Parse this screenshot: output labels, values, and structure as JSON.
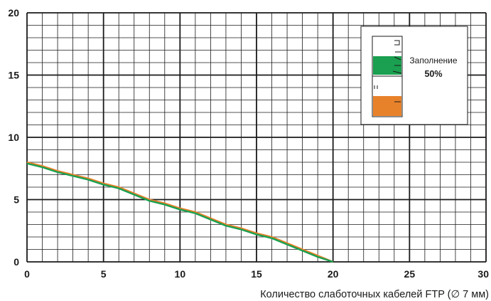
{
  "chart_data": {
    "type": "line",
    "xlabel": "Количество слаботочных кабелей FTP  (∅ 7 мм)",
    "ylabel": "",
    "xlim": [
      0,
      30
    ],
    "ylim": [
      0,
      20
    ],
    "x_ticks": [
      0,
      5,
      10,
      15,
      20,
      25,
      30
    ],
    "y_ticks": [
      0,
      5,
      10,
      15,
      20
    ],
    "grid": true,
    "series": [
      {
        "color": "#e8822a",
        "x": [
          0,
          1,
          2,
          3,
          4,
          5,
          6,
          7,
          8,
          9,
          10,
          11,
          12,
          13,
          14,
          15,
          16,
          17,
          18,
          19,
          20
        ],
        "y": [
          8,
          7.7,
          7.3,
          7,
          6.7,
          6.3,
          6,
          5.5,
          5,
          4.7,
          4.3,
          4,
          3.5,
          3,
          2.7,
          2.3,
          2,
          1.5,
          1,
          0.5,
          0
        ]
      },
      {
        "color": "#1aa050",
        "x": [
          0,
          1,
          2,
          3,
          4,
          5,
          6,
          7,
          8,
          9,
          10,
          11,
          12,
          13,
          14,
          15,
          16,
          17,
          18,
          19,
          20
        ],
        "y": [
          7.9,
          7.6,
          7.2,
          6.9,
          6.6,
          6.2,
          5.9,
          5.4,
          4.9,
          4.6,
          4.2,
          3.9,
          3.4,
          2.9,
          2.6,
          2.2,
          1.9,
          1.4,
          0.9,
          0.4,
          0
        ]
      }
    ],
    "legend": {
      "position": "top-right",
      "label": "Заполнение",
      "value": "50%",
      "colors": {
        "top_fill": "#1aa050",
        "bottom_fill": "#e8822a"
      }
    }
  }
}
